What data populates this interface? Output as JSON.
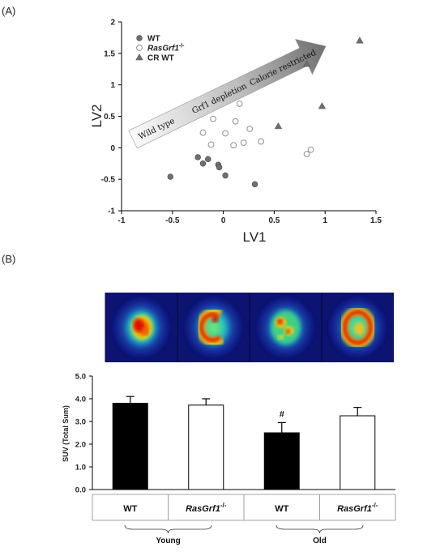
{
  "panels": {
    "a_label": "(A)",
    "b_label": "(B)"
  },
  "chart_data": [
    {
      "type": "scatter",
      "xlabel": "LV1",
      "ylabel": "LV2",
      "xlim": [
        -1,
        1.5
      ],
      "ylim": [
        -1,
        2
      ],
      "xticks": [
        "-1",
        "-0.5",
        "0",
        "0.5",
        "1",
        "1.5"
      ],
      "yticks": [
        "-1",
        "-0.5",
        "0",
        "0.5",
        "1",
        "1.5",
        "2"
      ],
      "legend_position": "top-left",
      "arrow_labels": [
        "Wild type",
        "Grf1 depletion",
        "Calorie restricted"
      ],
      "series": [
        {
          "name": "WT",
          "name_main": "WT",
          "name_sup": "",
          "marker": "filled-circle",
          "color": "#707070",
          "points": [
            [
              -0.52,
              -0.46
            ],
            [
              -0.25,
              -0.15
            ],
            [
              -0.2,
              -0.25
            ],
            [
              -0.15,
              -0.18
            ],
            [
              -0.05,
              -0.27
            ],
            [
              -0.04,
              -0.31
            ],
            [
              0.02,
              -0.44
            ],
            [
              0.31,
              -0.58
            ]
          ]
        },
        {
          "name": "RasGrf1-/-",
          "name_main": "RasGrf1",
          "name_sup": "-/-",
          "marker": "open-circle",
          "color": "#909090",
          "points": [
            [
              -0.1,
              0.46
            ],
            [
              -0.2,
              0.24
            ],
            [
              -0.12,
              0.05
            ],
            [
              0.02,
              0.23
            ],
            [
              0.1,
              0.04
            ],
            [
              0.12,
              0.42
            ],
            [
              0.16,
              0.7
            ],
            [
              0.2,
              0.08
            ],
            [
              0.26,
              0.3
            ],
            [
              0.37,
              0.1
            ],
            [
              0.82,
              -0.1
            ],
            [
              0.86,
              -0.03
            ]
          ]
        },
        {
          "name": "CR WT",
          "name_main": "CR WT",
          "name_sup": "",
          "marker": "triangle",
          "color": "#6e6e6e",
          "points": [
            [
              0.54,
              0.34
            ],
            [
              0.82,
              1.33
            ],
            [
              0.97,
              0.66
            ],
            [
              1.34,
              1.7
            ]
          ]
        }
      ]
    },
    {
      "type": "bar",
      "ylabel": "SUV (Total Sum)",
      "ylim": [
        0,
        5
      ],
      "yticks": [
        "0.0",
        "1.0",
        "2.0",
        "3.0",
        "4.0",
        "5.0"
      ],
      "categories": [
        {
          "label": "WT",
          "label_main": "WT",
          "label_sup": ""
        },
        {
          "label": "RasGrf1-/-",
          "label_main": "RasGrf1",
          "label_sup": "-/-"
        },
        {
          "label": "WT",
          "label_main": "WT",
          "label_sup": ""
        },
        {
          "label": "RasGrf1-/-",
          "label_main": "RasGrf1",
          "label_sup": "-/-"
        }
      ],
      "values": [
        3.8,
        3.72,
        2.5,
        3.25
      ],
      "errors": [
        0.3,
        0.28,
        0.45,
        0.37
      ],
      "fills": [
        "#000000",
        "#ffffff",
        "#000000",
        "#ffffff"
      ],
      "annotations": [
        "",
        "",
        "#",
        ""
      ],
      "groups": [
        {
          "label": "Young",
          "categories": [
            0,
            1
          ]
        },
        {
          "label": "Old",
          "categories": [
            2,
            3
          ]
        }
      ]
    }
  ],
  "pet_images": [
    {
      "name": "wt-young-scan",
      "shape": "oval"
    },
    {
      "name": "rasgrf1-young-scan",
      "shape": "c-shape"
    },
    {
      "name": "wt-old-scan",
      "shape": "faint"
    },
    {
      "name": "rasgrf1-old-scan",
      "shape": "ring"
    }
  ]
}
